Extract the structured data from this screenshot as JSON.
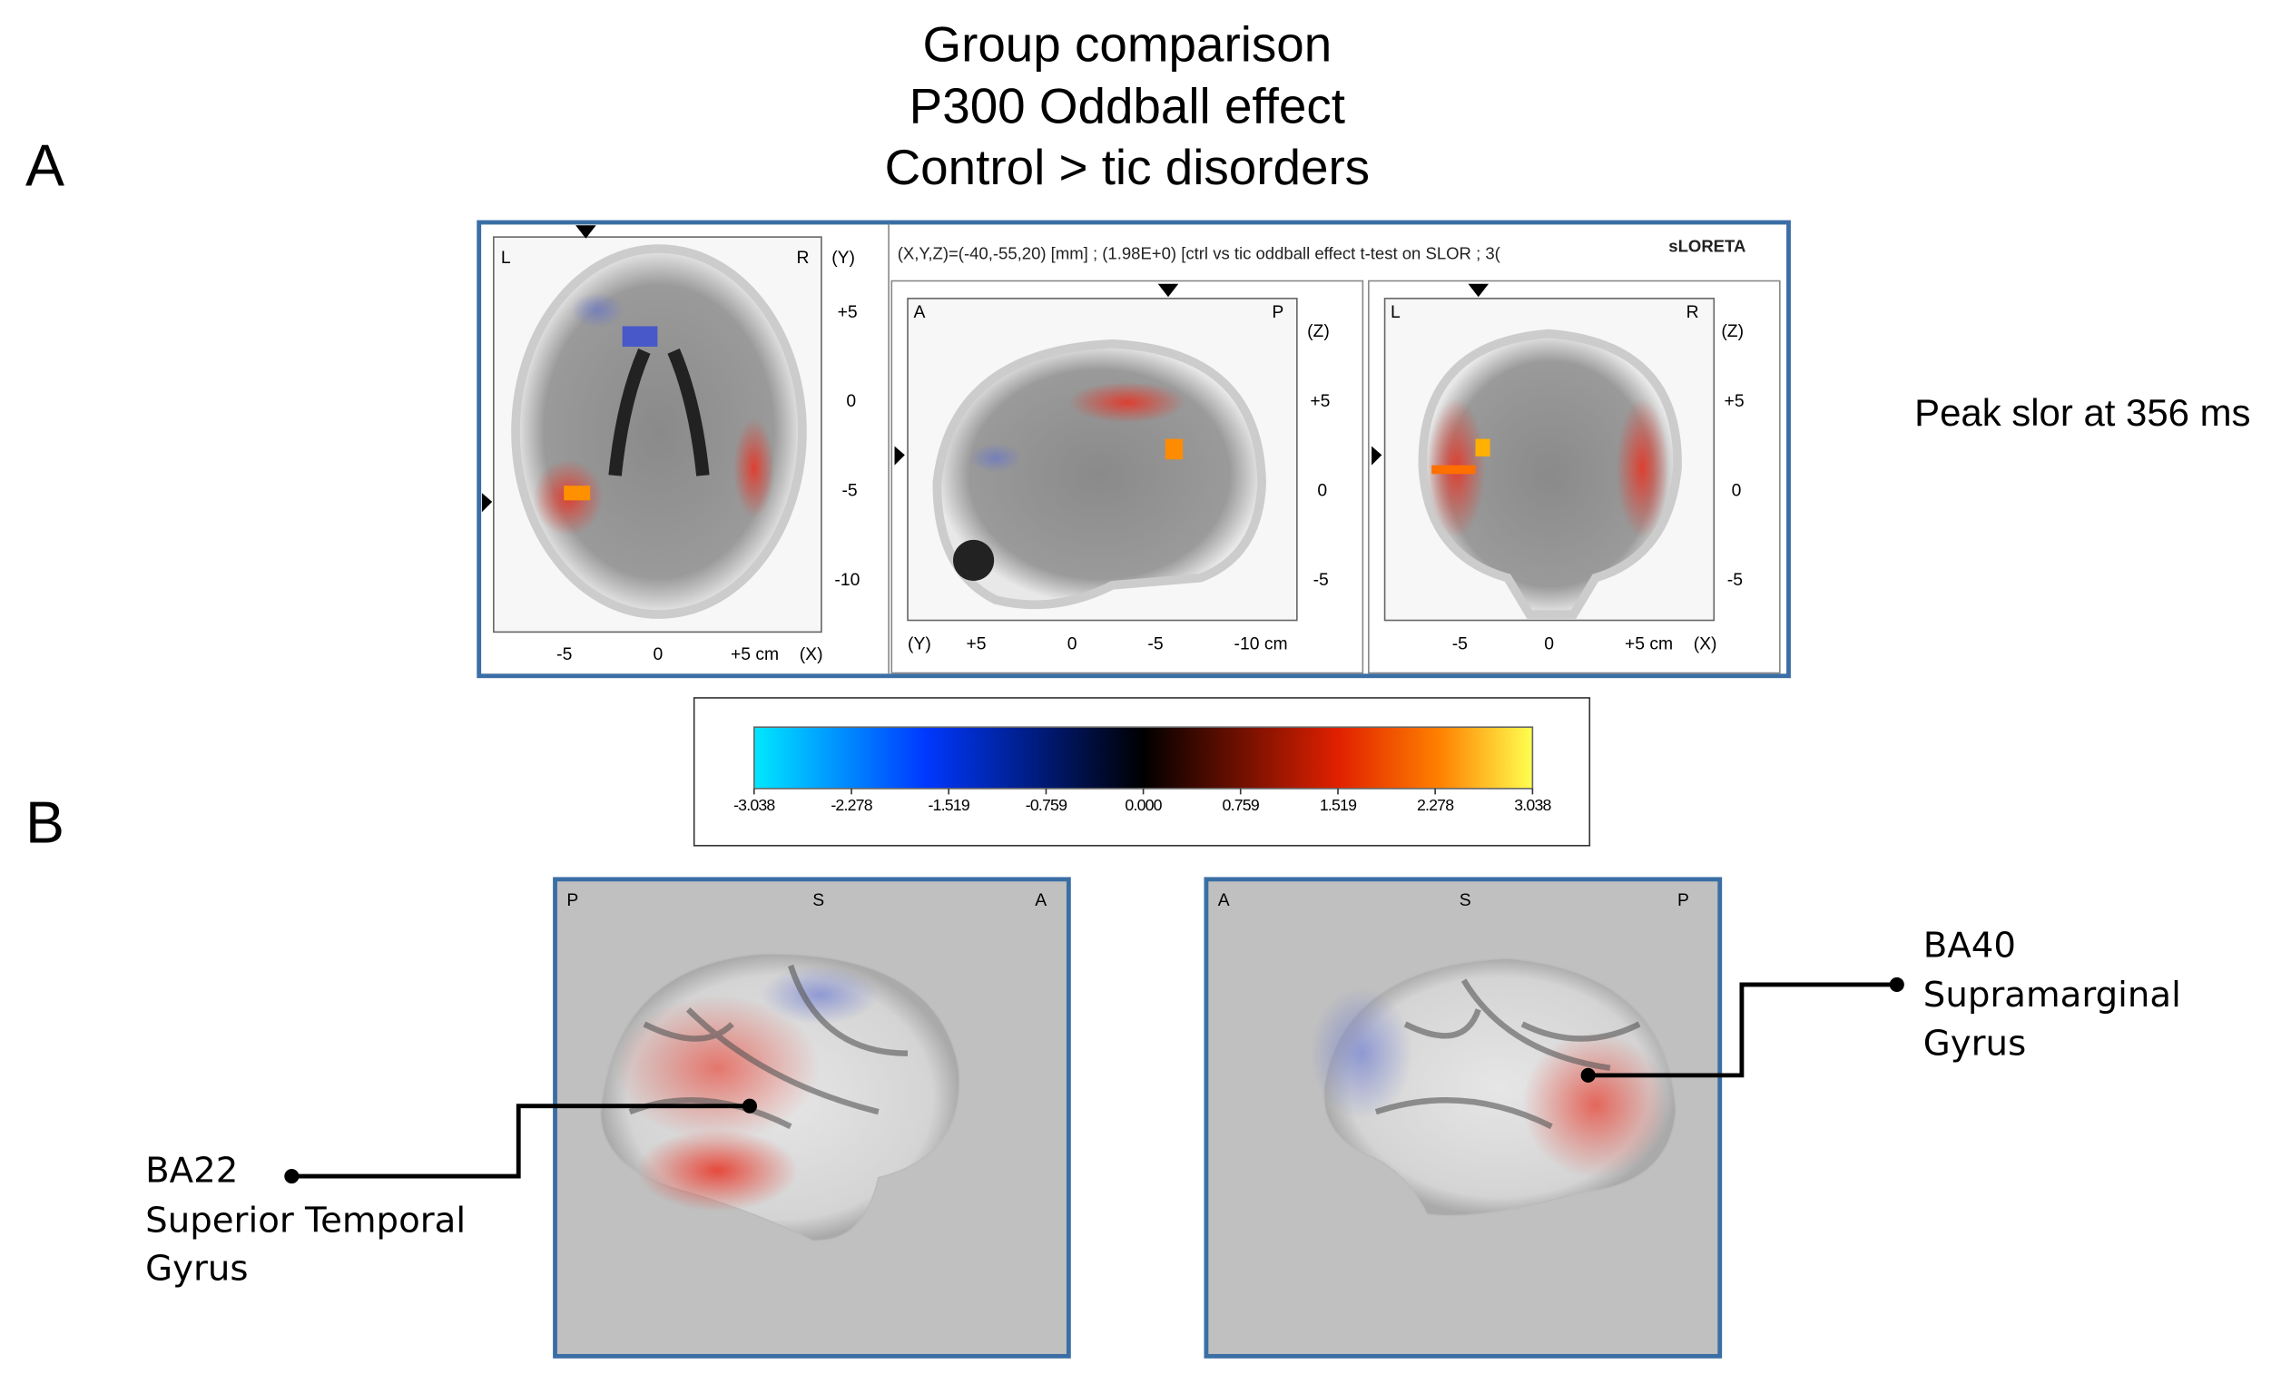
{
  "title": [
    "Group comparison",
    "P300 Oddball effect",
    "Control > tic disorders"
  ],
  "panel_labels": {
    "a": "A",
    "b": "B"
  },
  "peak_note": "Peak slor at 356 ms",
  "slice_header": {
    "coords": "(X,Y,Z)=(-40,-55,20) [mm] ; (1.98E+0)   [ctrl vs tic oddball effect t-test on SLOR ; 3(",
    "software": "sLORETA"
  },
  "axial": {
    "left": "L",
    "right": "R",
    "axis_right": "(Y)",
    "right_ticks": [
      "+5",
      "0",
      "-5",
      "-10"
    ],
    "bottom_ticks": [
      "-5",
      "0",
      "+5 cm"
    ],
    "axis_bottom": "(X)"
  },
  "sagittal": {
    "left": "A",
    "right": "P",
    "axis_right": "(Z)",
    "right_ticks": [
      "+5",
      "0",
      "-5"
    ],
    "axis_bottom": "(Y)",
    "bottom_ticks": [
      "+5",
      "0",
      "-5",
      "-10 cm"
    ]
  },
  "coronal": {
    "left": "L",
    "right": "R",
    "axis_right": "(Z)",
    "right_ticks": [
      "+5",
      "0",
      "-5"
    ],
    "bottom_ticks": [
      "-5",
      "0",
      "+5 cm"
    ],
    "axis_bottom": "(X)"
  },
  "colorbar": {
    "lim": [
      -3.038,
      3.038
    ],
    "ticks": [
      -3.038,
      -2.278,
      -1.519,
      -0.759,
      {
        "value": 0,
        "label": "0.000"
      },
      0.759,
      1.519,
      2.278,
      3.038
    ]
  },
  "surface_left": {
    "left": "P",
    "center": "S",
    "right": "A"
  },
  "surface_right": {
    "left": "A",
    "center": "S",
    "right": "P"
  },
  "callout_left": [
    "BA22",
    "Superior  Temporal",
    "Gyrus"
  ],
  "callout_right": [
    "BA40",
    "Supramarginal",
    "Gyrus"
  ]
}
